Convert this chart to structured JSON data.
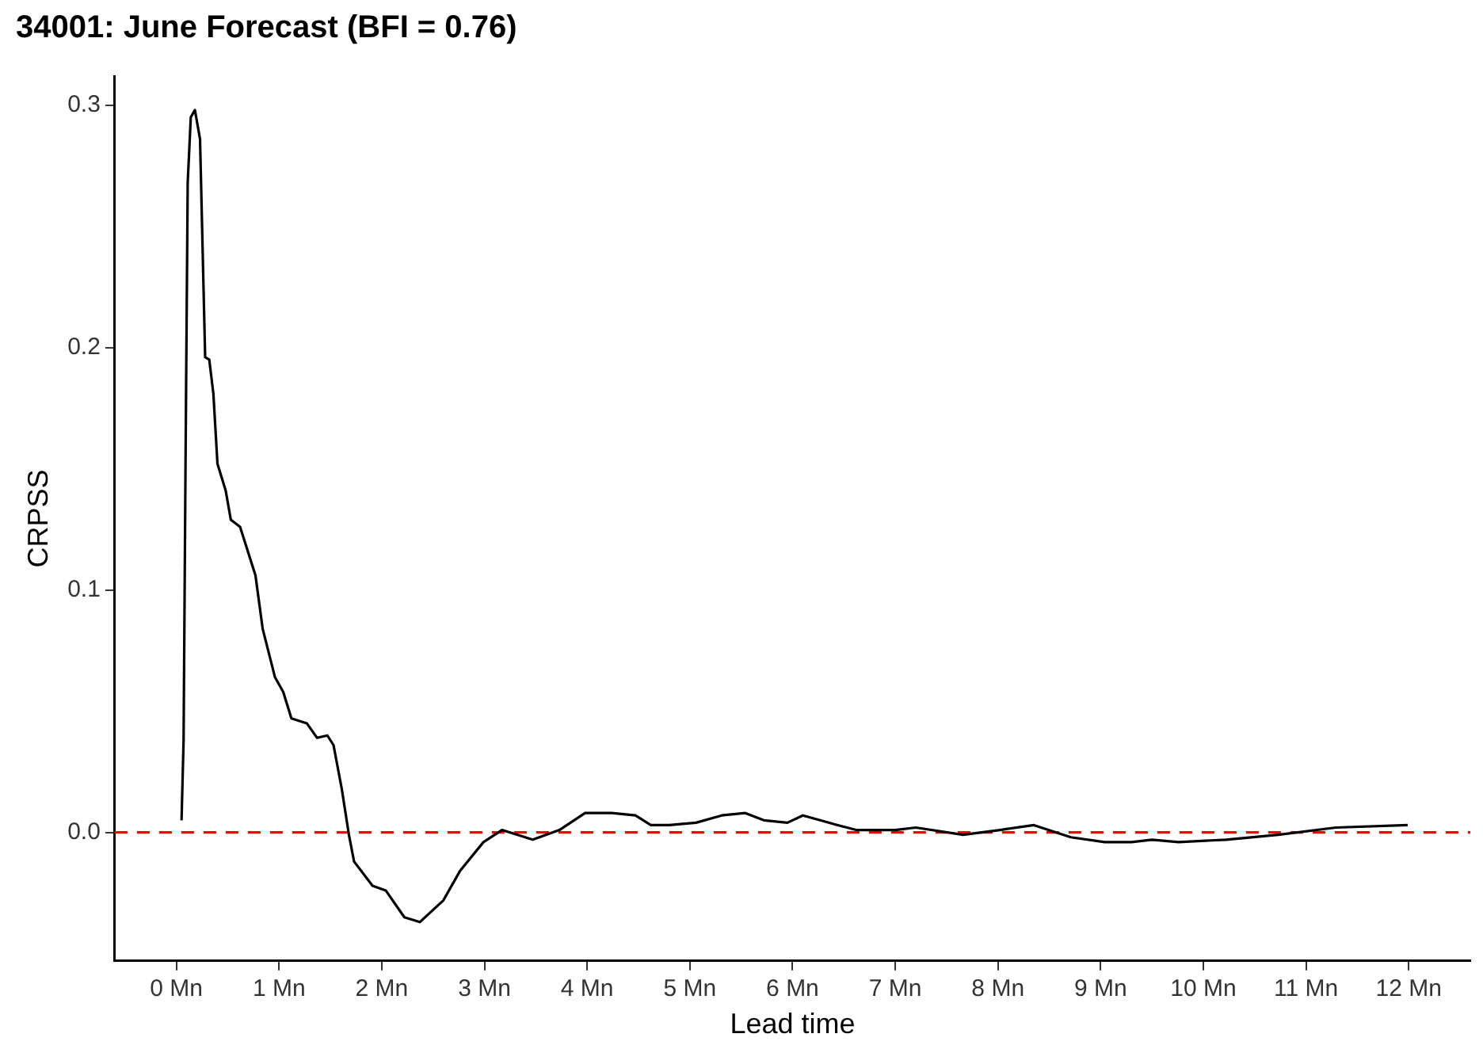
{
  "chart_data": {
    "type": "line",
    "title": "34001: June Forecast (BFI = 0.76)",
    "xlabel": "Lead time",
    "ylabel": "CRPSS",
    "xlim": [
      -0.6,
      12.6
    ],
    "ylim": [
      -0.053,
      0.312
    ],
    "xticks": [
      {
        "value": 0,
        "label": "0 Mn"
      },
      {
        "value": 1,
        "label": "1 Mn"
      },
      {
        "value": 2,
        "label": "2 Mn"
      },
      {
        "value": 3,
        "label": "3 Mn"
      },
      {
        "value": 4,
        "label": "4 Mn"
      },
      {
        "value": 5,
        "label": "5 Mn"
      },
      {
        "value": 6,
        "label": "6 Mn"
      },
      {
        "value": 7,
        "label": "7 Mn"
      },
      {
        "value": 8,
        "label": "8 Mn"
      },
      {
        "value": 9,
        "label": "9 Mn"
      },
      {
        "value": 10,
        "label": "10 Mn"
      },
      {
        "value": 11,
        "label": "11 Mn"
      },
      {
        "value": 12,
        "label": "12 Mn"
      }
    ],
    "yticks": [
      {
        "value": 0,
        "label": "0.0"
      },
      {
        "value": 0.1,
        "label": "0.1"
      },
      {
        "value": 0.2,
        "label": "0.2"
      },
      {
        "value": 0.3,
        "label": "0.3"
      }
    ],
    "grid": false,
    "legend": false,
    "marker": "none",
    "line_style": "solid",
    "ref_lines": [
      {
        "axis": "y",
        "value": 0,
        "color": "#ff0000",
        "line_style": "dashed"
      }
    ],
    "series": [
      {
        "color": "#000000",
        "x": [
          0.05,
          0.07,
          0.09,
          0.11,
          0.14,
          0.18,
          0.23,
          0.28,
          0.32,
          0.36,
          0.4,
          0.48,
          0.53,
          0.62,
          0.77,
          0.84,
          0.96,
          1.04,
          1.12,
          1.27,
          1.37,
          1.47,
          1.53,
          1.61,
          1.68,
          1.73,
          1.91,
          2.04,
          2.22,
          2.37,
          2.6,
          2.76,
          2.99,
          3.17,
          3.47,
          3.73,
          3.98,
          4.24,
          4.47,
          4.62,
          4.8,
          5.06,
          5.31,
          5.54,
          5.72,
          5.95,
          6.1,
          6.44,
          6.62,
          7.0,
          7.2,
          7.66,
          8.02,
          8.35,
          8.71,
          9.04,
          9.3,
          9.5,
          9.76,
          10.22,
          10.73,
          11.29,
          11.99
        ],
        "values": [
          0.005,
          0.038,
          0.159,
          0.268,
          0.295,
          0.298,
          0.286,
          0.196,
          0.195,
          0.181,
          0.152,
          0.141,
          0.129,
          0.126,
          0.106,
          0.084,
          0.064,
          0.058,
          0.047,
          0.045,
          0.039,
          0.04,
          0.036,
          0.018,
          -0.001,
          -0.012,
          -0.022,
          -0.024,
          -0.035,
          -0.037,
          -0.028,
          -0.016,
          -0.004,
          0.001,
          -0.003,
          0.001,
          0.008,
          0.008,
          0.007,
          0.003,
          0.003,
          0.004,
          0.007,
          0.008,
          0.005,
          0.004,
          0.007,
          0.003,
          0.001,
          0.001,
          0.002,
          -0.001,
          0.001,
          0.003,
          -0.002,
          -0.004,
          -0.004,
          -0.003,
          -0.004,
          -0.003,
          -0.001,
          0.002,
          0.003
        ]
      }
    ]
  }
}
